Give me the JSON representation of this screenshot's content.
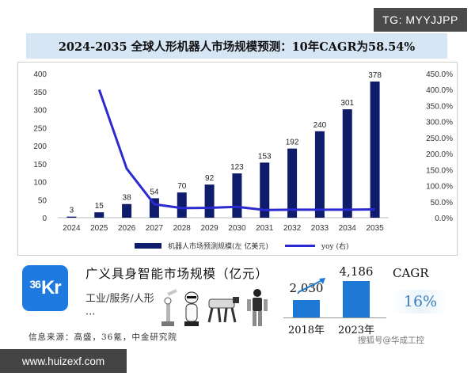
{
  "badge_top": "TG: MYYJJPP",
  "title": "2024-2035 全球人形机器人市场规模预测：10年CAGR为58.54%",
  "chart_data": {
    "type": "bar",
    "categories": [
      "2024",
      "2025",
      "2026",
      "2027",
      "2028",
      "2029",
      "2030",
      "2031",
      "2032",
      "2033",
      "2034",
      "2035"
    ],
    "series": [
      {
        "name": "机器人市场预测规模(左 亿美元)",
        "type": "bar",
        "axis": "left",
        "color": "#0f1c6b",
        "values": [
          3,
          15,
          38,
          54,
          70,
          92,
          123,
          153,
          192,
          240,
          301,
          378
        ]
      },
      {
        "name": "yoy (右)",
        "type": "line",
        "axis": "right",
        "color": "#2a2ad0",
        "values": [
          null,
          400,
          153,
          42,
          30,
          31,
          34,
          24,
          25,
          25,
          25,
          26
        ]
      }
    ],
    "y_left": {
      "min": 0,
      "max": 400,
      "ticks": [
        "0",
        "50",
        "100",
        "150",
        "200",
        "250",
        "300",
        "350",
        "400"
      ]
    },
    "y_right": {
      "min": 0,
      "max": 450,
      "ticks": [
        "0.0%",
        "50.0%",
        "100.0%",
        "150.0%",
        "200.0%",
        "250.0%",
        "300.0%",
        "350.0%",
        "400.0%",
        "450.0%"
      ]
    },
    "data_labels": [
      "3",
      "15",
      "38",
      "54",
      "70",
      "92",
      "123",
      "153",
      "192",
      "240",
      "301",
      "378"
    ],
    "grid": false,
    "legend": "bottom"
  },
  "legend": {
    "bar_label": "机器人市场预测规模(左 亿美元)",
    "line_label": "yoy (右)"
  },
  "bottom": {
    "logo_small": "36",
    "logo_big": "Kr",
    "title": "广义具身智能市场规模（亿元）",
    "subtitle": "工业/服务/人形···",
    "source": "信息来源：高盛，36氪，中金研究院",
    "mini_chart": {
      "categories": [
        "2018年",
        "2023年"
      ],
      "values": [
        2030,
        4186
      ],
      "value_labels": [
        "2,030",
        "4,186"
      ],
      "color": "#1e78d6"
    },
    "cagr_label": "CAGR",
    "cagr_value": "16%"
  },
  "watermarks": {
    "sohu": "搜狐号@华成工控",
    "site": "www.huizexf.com"
  }
}
